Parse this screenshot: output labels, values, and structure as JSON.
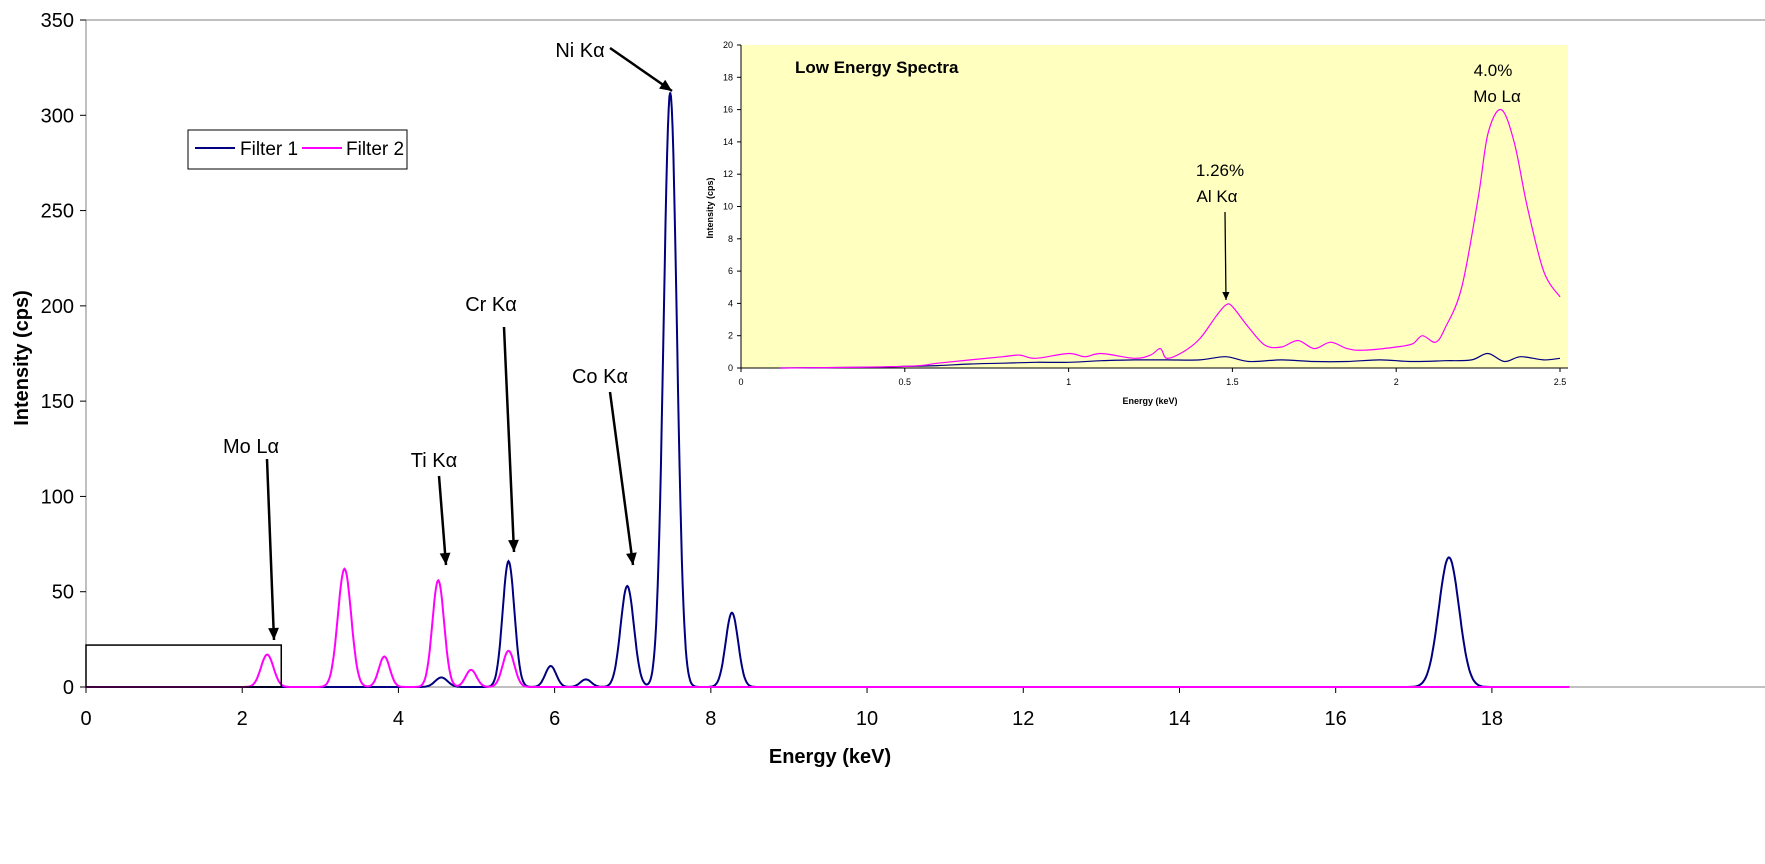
{
  "chart_data": [
    {
      "type": "line",
      "xlabel": "Energy (keV)",
      "ylabel": "Intensity (cps)",
      "xlim": [
        0,
        19
      ],
      "ylim": [
        0,
        350
      ],
      "xticks": [
        0,
        2,
        4,
        6,
        8,
        10,
        12,
        14,
        16,
        18
      ],
      "yticks": [
        0,
        50,
        100,
        150,
        200,
        250,
        300,
        350
      ],
      "grid": false,
      "legend_position": "upper-left",
      "series": [
        {
          "name": "Filter 1",
          "color": "#000080",
          "peaks": [
            {
              "x": 4.55,
              "y": 5,
              "w": 0.08
            },
            {
              "x": 5.41,
              "y": 66,
              "w": 0.075
            },
            {
              "x": 5.95,
              "y": 11,
              "w": 0.07
            },
            {
              "x": 6.4,
              "y": 4,
              "w": 0.07
            },
            {
              "x": 6.93,
              "y": 53,
              "w": 0.085
            },
            {
              "x": 7.48,
              "y": 312,
              "w": 0.085
            },
            {
              "x": 8.27,
              "y": 39,
              "w": 0.08
            },
            {
              "x": 17.45,
              "y": 68,
              "w": 0.13
            }
          ]
        },
        {
          "name": "Filter 2",
          "color": "#ff00ff",
          "peaks": [
            {
              "x": 2.32,
              "y": 17,
              "w": 0.08
            },
            {
              "x": 3.31,
              "y": 62,
              "w": 0.085
            },
            {
              "x": 3.82,
              "y": 16,
              "w": 0.07
            },
            {
              "x": 4.51,
              "y": 56,
              "w": 0.075
            },
            {
              "x": 4.93,
              "y": 9,
              "w": 0.07
            },
            {
              "x": 5.41,
              "y": 19,
              "w": 0.075
            }
          ]
        }
      ],
      "annotations": [
        {
          "label": "Mo Lα",
          "x": 2.35,
          "y": 20
        },
        {
          "label": "Ti Kα",
          "x": 4.55,
          "y": 63
        },
        {
          "label": "Cr Kα",
          "x": 5.45,
          "y": 70
        },
        {
          "label": "Co Kα",
          "x": 6.98,
          "y": 63
        },
        {
          "label": "Ni Kα",
          "x": 7.45,
          "y": 312
        }
      ],
      "zoom_region": {
        "xmin": 0,
        "xmax": 2.5,
        "ymin": 0,
        "ymax": 22
      }
    },
    {
      "type": "line",
      "title": "Low Energy Spectra",
      "xlabel": "Energy (keV)",
      "ylabel": "Intensity (cps)",
      "xlim": [
        0,
        2.5
      ],
      "ylim": [
        0,
        20
      ],
      "xticks": [
        0,
        0.5,
        1,
        1.5,
        2,
        2.5
      ],
      "yticks": [
        0,
        2,
        4,
        6,
        8,
        10,
        12,
        14,
        16,
        18,
        20
      ],
      "background": "#ffffc0",
      "series": [
        {
          "name": "Filter 1",
          "color": "#000080",
          "x": [
            0.12,
            0.4,
            0.5,
            0.6,
            0.7,
            0.8,
            0.9,
            1.0,
            1.1,
            1.2,
            1.3,
            1.4,
            1.48,
            1.55,
            1.65,
            1.75,
            1.85,
            1.95,
            2.05,
            2.15,
            2.23,
            2.28,
            2.33,
            2.38,
            2.45,
            2.5
          ],
          "y": [
            0,
            0.05,
            0.1,
            0.15,
            0.25,
            0.3,
            0.35,
            0.35,
            0.45,
            0.5,
            0.5,
            0.5,
            0.7,
            0.4,
            0.5,
            0.4,
            0.4,
            0.5,
            0.4,
            0.45,
            0.5,
            0.9,
            0.4,
            0.7,
            0.5,
            0.6
          ]
        },
        {
          "name": "Filter 2",
          "color": "#ff00ff",
          "x": [
            0.12,
            0.5,
            0.6,
            0.7,
            0.8,
            0.85,
            0.9,
            1.0,
            1.05,
            1.1,
            1.2,
            1.25,
            1.28,
            1.3,
            1.35,
            1.4,
            1.45,
            1.48,
            1.5,
            1.55,
            1.6,
            1.65,
            1.7,
            1.75,
            1.8,
            1.85,
            1.9,
            2.0,
            2.05,
            2.08,
            2.12,
            2.15,
            2.2,
            2.25,
            2.28,
            2.32,
            2.36,
            2.4,
            2.45,
            2.5
          ],
          "y": [
            0,
            0.1,
            0.3,
            0.5,
            0.7,
            0.8,
            0.6,
            0.9,
            0.7,
            0.9,
            0.6,
            0.8,
            1.2,
            0.6,
            1.0,
            1.8,
            3.2,
            3.9,
            3.8,
            2.5,
            1.4,
            1.3,
            1.7,
            1.2,
            1.6,
            1.2,
            1.1,
            1.3,
            1.5,
            2.0,
            1.6,
            2.5,
            5.0,
            10.5,
            14.5,
            16.0,
            14.0,
            10.0,
            6.0,
            4.4
          ]
        }
      ],
      "annotations": [
        {
          "label": "Al Kα",
          "value": "1.26%",
          "x": 1.48,
          "y": 4.0
        },
        {
          "label": "Mo Lα",
          "value": "4.0%",
          "x": 2.32,
          "y": 16.0
        }
      ]
    }
  ]
}
